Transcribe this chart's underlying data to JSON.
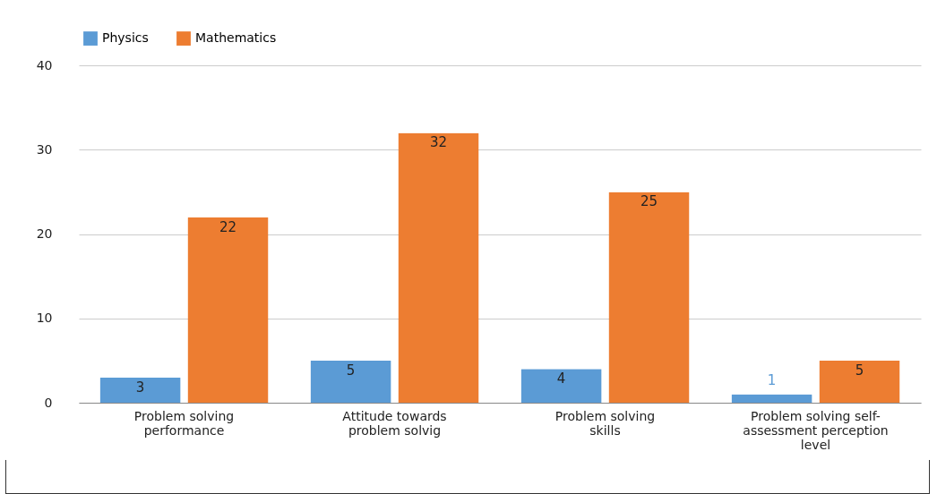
{
  "chart_data": {
    "type": "bar",
    "categories": [
      "Problem solving performance",
      "Attitude towards problem solvig",
      "Problem solving skills",
      "Problem solving self-assessment perception level"
    ],
    "series": [
      {
        "name": "Physics",
        "color": "#5b9bd5",
        "values": [
          3,
          5,
          4,
          1
        ]
      },
      {
        "name": "Mathematics",
        "color": "#ed7d31",
        "values": [
          22,
          32,
          25,
          5
        ]
      }
    ],
    "ylim": [
      0,
      40
    ],
    "yticks": [
      0,
      10,
      20,
      30,
      40
    ],
    "grid": "y",
    "legend": "top",
    "data_labels": true
  }
}
